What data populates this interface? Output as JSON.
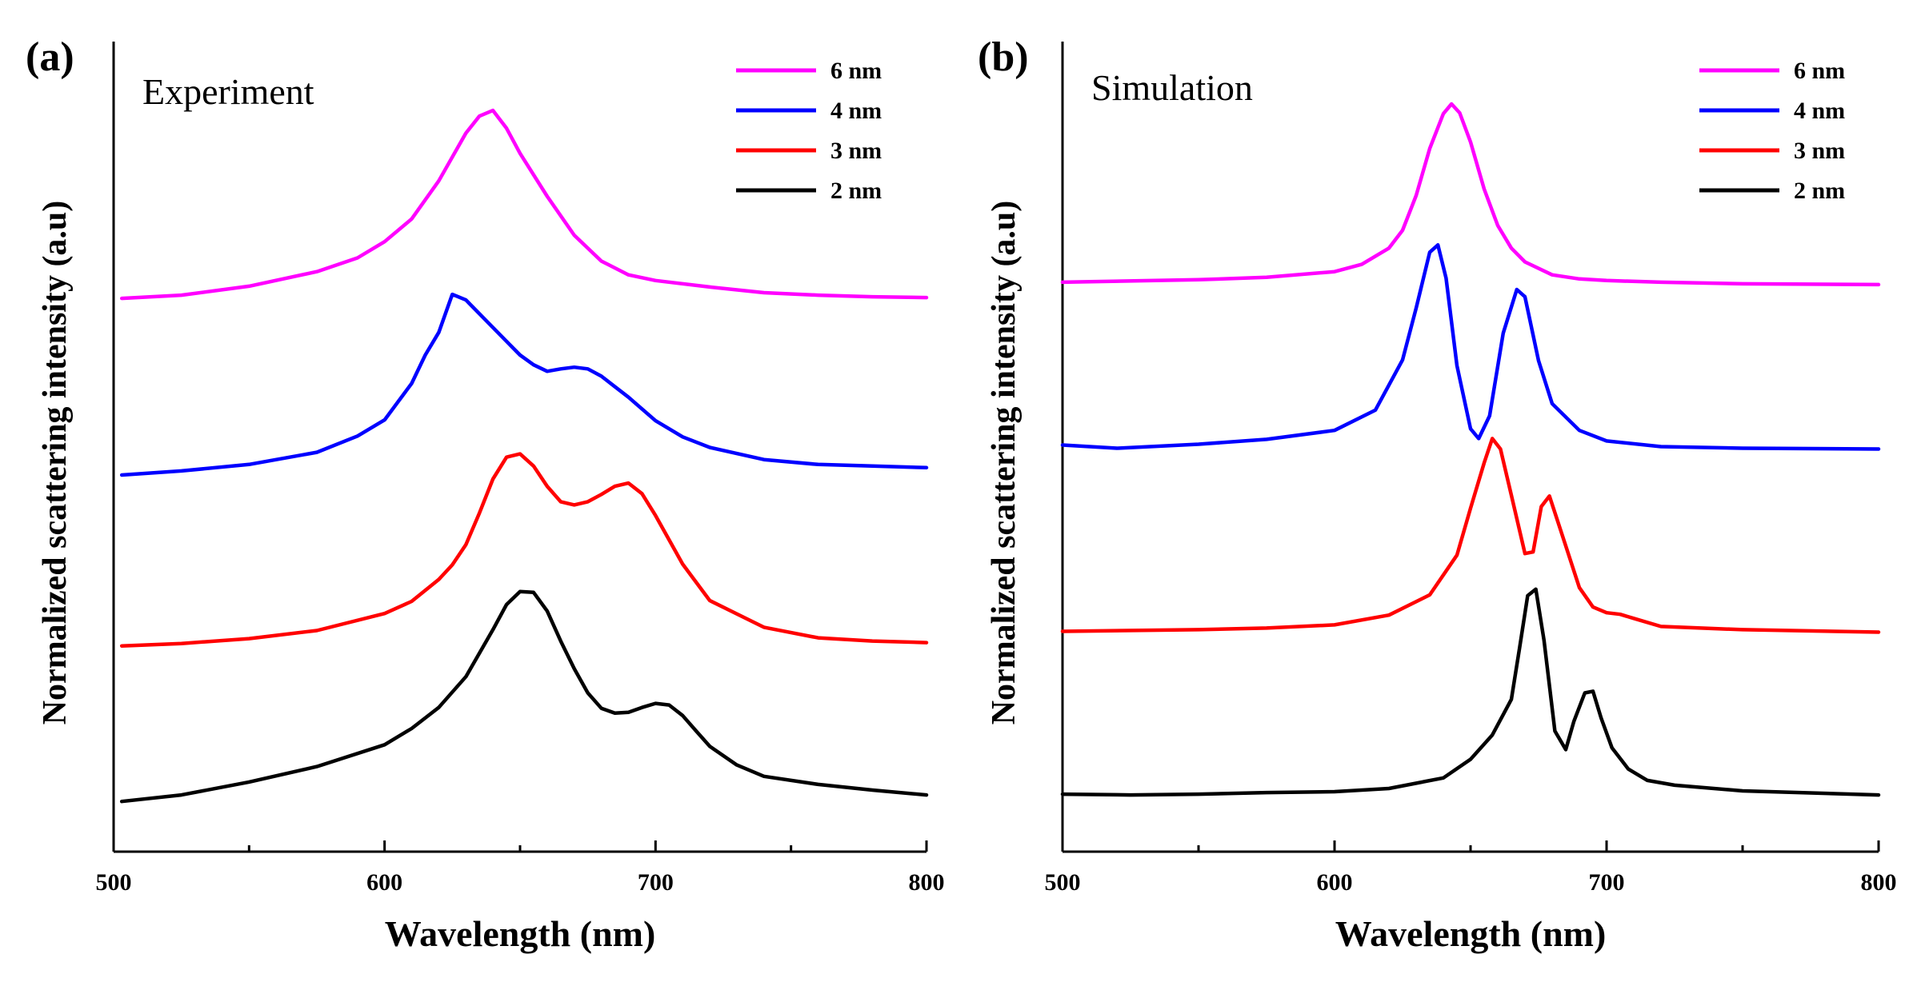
{
  "chart_data": [
    {
      "type": "line",
      "panel_label": "(a)",
      "title": "Experiment",
      "xlabel": "Wavelength (nm)",
      "ylabel": "Normalized scattering intensity (a.u)",
      "xlim": [
        500,
        800
      ],
      "ylim": [
        0,
        1
      ],
      "x_ticks": [
        "500",
        "600",
        "700",
        "800"
      ],
      "legend_position": "top-right",
      "series": [
        {
          "name": "6 nm",
          "color": "#ff00ff",
          "x": [
            503,
            525,
            550,
            575,
            590,
            600,
            610,
            620,
            630,
            635,
            640,
            645,
            650,
            660,
            670,
            680,
            690,
            700,
            720,
            740,
            760,
            780,
            800
          ],
          "y": [
            0.683,
            0.687,
            0.698,
            0.716,
            0.733,
            0.753,
            0.781,
            0.828,
            0.887,
            0.908,
            0.915,
            0.893,
            0.862,
            0.809,
            0.761,
            0.729,
            0.712,
            0.705,
            0.697,
            0.69,
            0.687,
            0.685,
            0.684
          ]
        },
        {
          "name": "4 nm",
          "color": "#0000ff",
          "x": [
            503,
            525,
            550,
            575,
            590,
            600,
            610,
            615,
            620,
            625,
            630,
            640,
            650,
            655,
            660,
            665,
            670,
            675,
            680,
            690,
            700,
            710,
            720,
            740,
            760,
            780,
            800
          ],
          "y": [
            0.465,
            0.47,
            0.478,
            0.493,
            0.513,
            0.533,
            0.578,
            0.613,
            0.641,
            0.688,
            0.681,
            0.647,
            0.613,
            0.601,
            0.593,
            0.596,
            0.598,
            0.596,
            0.587,
            0.561,
            0.532,
            0.512,
            0.499,
            0.484,
            0.478,
            0.476,
            0.474
          ]
        },
        {
          "name": "3 nm",
          "color": "#ff0000",
          "x": [
            503,
            525,
            550,
            575,
            600,
            610,
            620,
            625,
            630,
            635,
            640,
            645,
            650,
            655,
            660,
            665,
            670,
            675,
            680,
            685,
            690,
            695,
            700,
            710,
            720,
            740,
            760,
            780,
            800
          ],
          "y": [
            0.254,
            0.257,
            0.263,
            0.273,
            0.294,
            0.309,
            0.336,
            0.354,
            0.379,
            0.418,
            0.46,
            0.487,
            0.491,
            0.476,
            0.451,
            0.432,
            0.428,
            0.432,
            0.441,
            0.451,
            0.455,
            0.442,
            0.415,
            0.355,
            0.31,
            0.277,
            0.264,
            0.26,
            0.258
          ]
        },
        {
          "name": "2 nm",
          "color": "#000000",
          "x": [
            503,
            525,
            550,
            575,
            600,
            610,
            620,
            630,
            640,
            645,
            650,
            655,
            660,
            665,
            670,
            675,
            680,
            685,
            690,
            695,
            700,
            705,
            710,
            715,
            720,
            730,
            740,
            760,
            780,
            800
          ],
          "y": [
            0.062,
            0.07,
            0.086,
            0.105,
            0.132,
            0.152,
            0.178,
            0.216,
            0.274,
            0.305,
            0.321,
            0.32,
            0.297,
            0.26,
            0.226,
            0.196,
            0.177,
            0.171,
            0.172,
            0.178,
            0.183,
            0.181,
            0.168,
            0.149,
            0.13,
            0.107,
            0.093,
            0.083,
            0.076,
            0.07
          ]
        }
      ]
    },
    {
      "type": "line",
      "panel_label": "(b)",
      "title": "Simulation",
      "xlabel": "Wavelength (nm)",
      "ylabel": "Normalized scattering intensity (a.u)",
      "xlim": [
        500,
        800
      ],
      "ylim": [
        0,
        1
      ],
      "x_ticks": [
        "500",
        "600",
        "700",
        "800"
      ],
      "legend_position": "top-right",
      "series": [
        {
          "name": "6 nm",
          "color": "#ff00ff",
          "x": [
            500,
            550,
            575,
            600,
            610,
            620,
            625,
            630,
            635,
            640,
            643,
            646,
            650,
            655,
            660,
            665,
            670,
            680,
            690,
            700,
            720,
            750,
            800
          ],
          "y": [
            0.703,
            0.706,
            0.709,
            0.716,
            0.725,
            0.745,
            0.767,
            0.81,
            0.868,
            0.911,
            0.923,
            0.912,
            0.876,
            0.818,
            0.773,
            0.745,
            0.728,
            0.712,
            0.707,
            0.705,
            0.703,
            0.701,
            0.7
          ]
        },
        {
          "name": "4 nm",
          "color": "#0000ff",
          "x": [
            500,
            520,
            550,
            575,
            600,
            615,
            625,
            630,
            635,
            638,
            641,
            645,
            650,
            653,
            657,
            662,
            667,
            670,
            675,
            680,
            690,
            700,
            720,
            750,
            800
          ],
          "y": [
            0.502,
            0.498,
            0.503,
            0.509,
            0.52,
            0.545,
            0.607,
            0.671,
            0.74,
            0.749,
            0.708,
            0.6,
            0.522,
            0.51,
            0.538,
            0.64,
            0.694,
            0.685,
            0.606,
            0.553,
            0.52,
            0.507,
            0.5,
            0.498,
            0.497
          ]
        },
        {
          "name": "3 nm",
          "color": "#ff0000",
          "x": [
            500,
            550,
            575,
            600,
            620,
            635,
            645,
            650,
            655,
            658,
            661,
            665,
            670,
            673,
            676,
            679,
            683,
            690,
            695,
            700,
            705,
            710,
            720,
            750,
            800
          ],
          "y": [
            0.272,
            0.274,
            0.276,
            0.28,
            0.292,
            0.317,
            0.366,
            0.424,
            0.48,
            0.51,
            0.497,
            0.44,
            0.368,
            0.37,
            0.426,
            0.439,
            0.398,
            0.326,
            0.302,
            0.295,
            0.293,
            0.288,
            0.278,
            0.274,
            0.271
          ]
        },
        {
          "name": "2 nm",
          "color": "#000000",
          "x": [
            500,
            525,
            550,
            575,
            600,
            620,
            640,
            650,
            658,
            665,
            668,
            671,
            674,
            677,
            681,
            685,
            688,
            692,
            695,
            698,
            702,
            708,
            715,
            725,
            750,
            800
          ],
          "y": [
            0.071,
            0.07,
            0.071,
            0.073,
            0.074,
            0.078,
            0.091,
            0.114,
            0.144,
            0.188,
            0.251,
            0.316,
            0.324,
            0.261,
            0.149,
            0.126,
            0.161,
            0.196,
            0.198,
            0.165,
            0.128,
            0.102,
            0.088,
            0.082,
            0.075,
            0.07
          ]
        }
      ]
    }
  ]
}
